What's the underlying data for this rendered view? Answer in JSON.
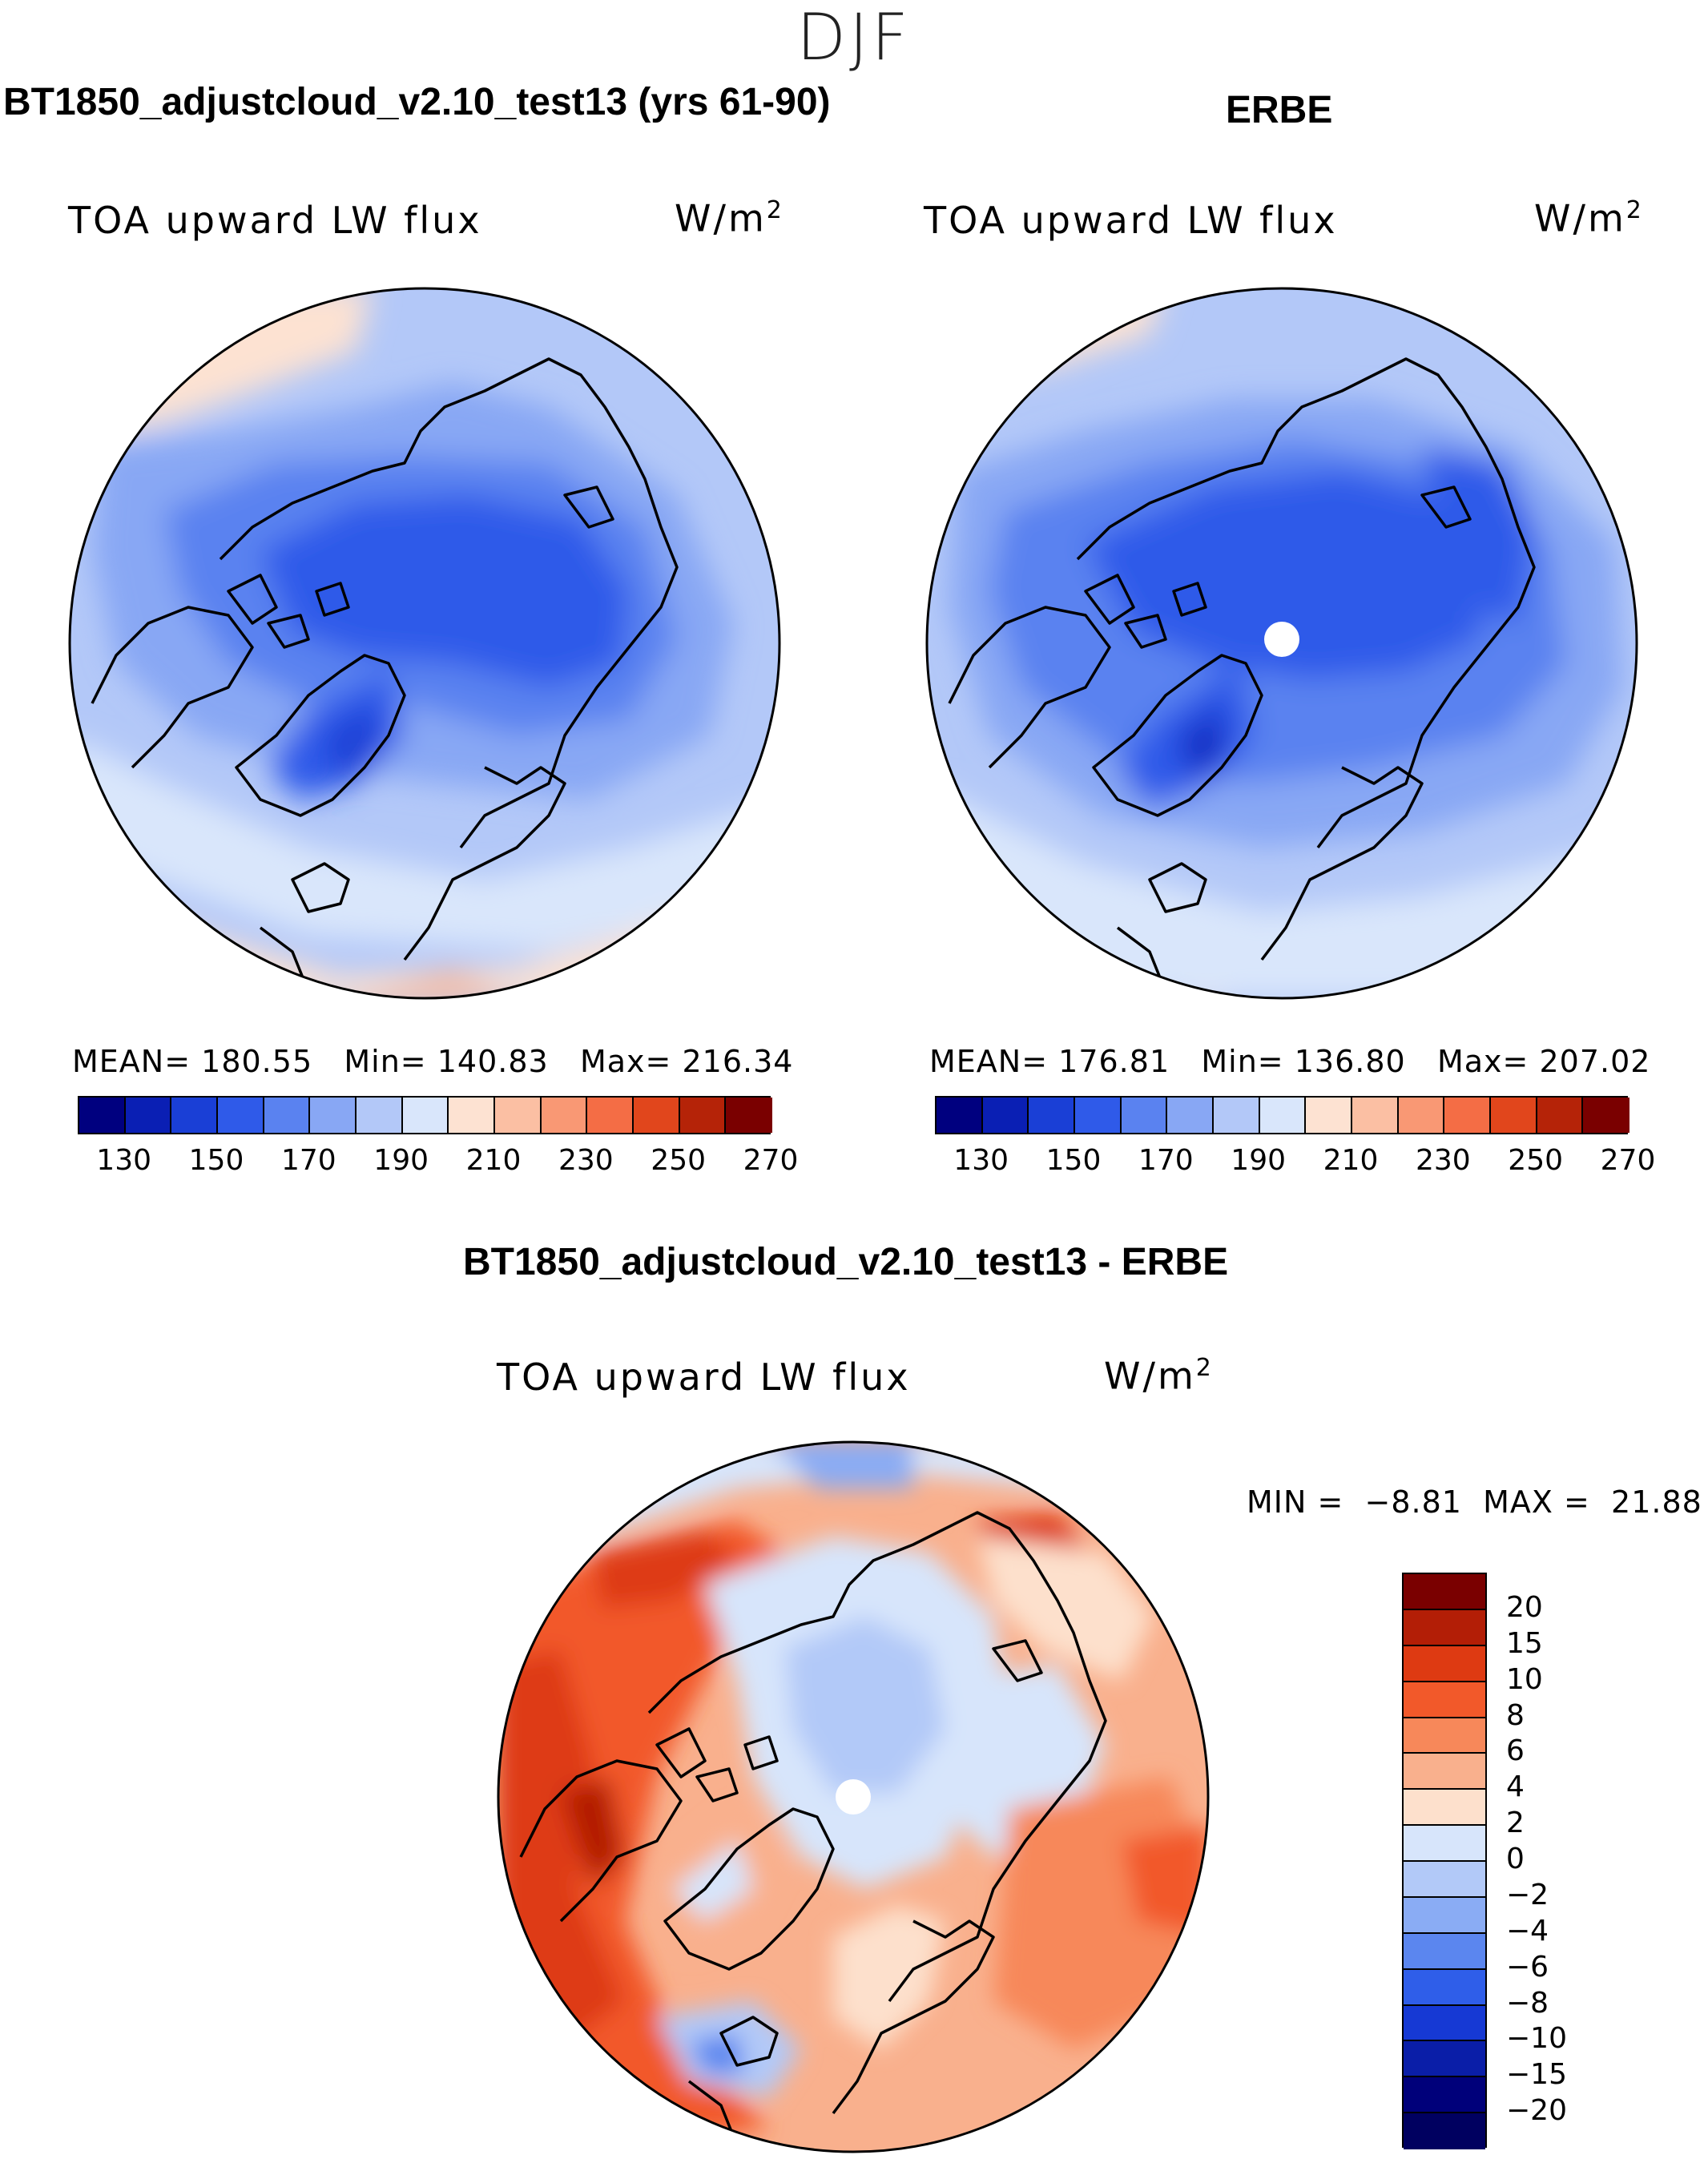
{
  "season": "DJF",
  "panels": [
    {
      "title": "BT1850_adjustcloud_v2.10_test13 (yrs 61-90)",
      "variable": "TOA upward LW flux",
      "units_base": "W/m",
      "units_exp": "2",
      "stats": {
        "mean_label": "MEAN=",
        "mean": "180.55",
        "min_label": "Min=",
        "min": "140.83",
        "max_label": "Max=",
        "max": "216.34"
      },
      "has_missing_pole": false
    },
    {
      "title": "ERBE",
      "variable": "TOA upward LW flux",
      "units_base": "W/m",
      "units_exp": "2",
      "stats": {
        "mean_label": "MEAN=",
        "mean": "176.81",
        "min_label": "Min=",
        "min": "136.80",
        "max_label": "Max=",
        "max": "207.02"
      },
      "has_missing_pole": true
    }
  ],
  "diff_panel": {
    "title": "BT1850_adjustcloud_v2.10_test13 - ERBE",
    "variable": "TOA upward LW flux",
    "units_base": "W/m",
    "units_exp": "2",
    "minmax": {
      "min_label": "MIN =",
      "min": "−8.81",
      "max_label": "MAX =",
      "max": "21.88"
    }
  },
  "abs_colorbar": {
    "colors": [
      "#00007f",
      "#0a1fb4",
      "#1a3fd6",
      "#2f5ae9",
      "#5a82f0",
      "#88a7f4",
      "#b3c8f8",
      "#d9e6fb",
      "#fde2d2",
      "#fbbfa3",
      "#f99874",
      "#f46d45",
      "#e1461c",
      "#b52308",
      "#7a0000"
    ],
    "labels": [
      "130",
      "150",
      "170",
      "190",
      "210",
      "230",
      "250",
      "270"
    ]
  },
  "diff_colorbar": {
    "colors": [
      "#7a0000",
      "#b31e06",
      "#de3a12",
      "#f2592a",
      "#f7885a",
      "#f9b08d",
      "#fde0cc",
      "#d7e5fb",
      "#b2c9f8",
      "#8aacf4",
      "#5b86ef",
      "#2f5ee9",
      "#1639d4",
      "#0a1ea8",
      "#00007a"
    ],
    "labels": [
      "20",
      "15",
      "10",
      "8",
      "6",
      "4",
      "2",
      "0",
      "−2",
      "−4",
      "−6",
      "−8",
      "−10",
      "−15",
      "−20"
    ]
  }
}
